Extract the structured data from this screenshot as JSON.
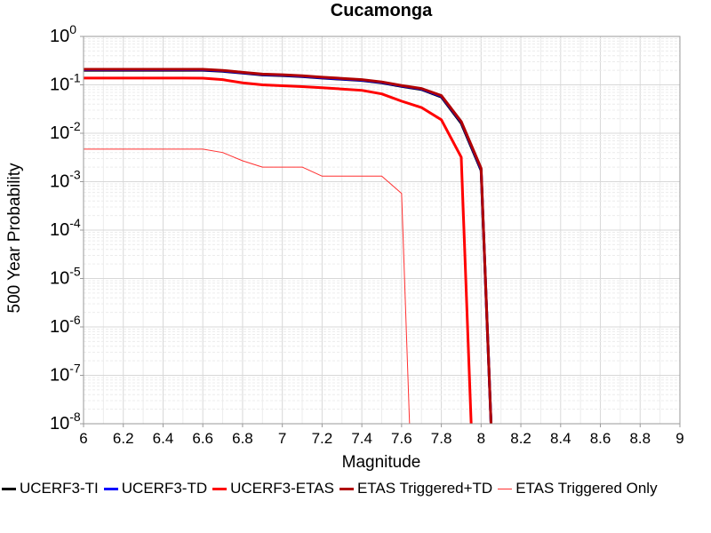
{
  "chart_data": {
    "type": "line",
    "title": "Cucamonga",
    "xlabel": "Magnitude",
    "ylabel": "500 Year Probability",
    "xlim": [
      6,
      9
    ],
    "ylim": [
      1e-08,
      1
    ],
    "yscale": "log",
    "grid": true,
    "legend_position": "bottom",
    "x_ticks": [
      "6",
      "6.2",
      "6.4",
      "6.6",
      "6.8",
      "7",
      "7.2",
      "7.4",
      "7.6",
      "7.8",
      "8",
      "8.2",
      "8.4",
      "8.6",
      "8.8",
      "9"
    ],
    "y_ticks": [
      {
        "base": "10",
        "exp": "0"
      },
      {
        "base": "10",
        "exp": "-1"
      },
      {
        "base": "10",
        "exp": "-2"
      },
      {
        "base": "10",
        "exp": "-3"
      },
      {
        "base": "10",
        "exp": "-4"
      },
      {
        "base": "10",
        "exp": "-5"
      },
      {
        "base": "10",
        "exp": "-6"
      },
      {
        "base": "10",
        "exp": "-7"
      },
      {
        "base": "10",
        "exp": "-8"
      }
    ],
    "series": [
      {
        "name": "UCERF3-ETAS",
        "color": "#ff0000",
        "width": 3,
        "x": [
          6.0,
          6.1,
          6.2,
          6.3,
          6.4,
          6.5,
          6.6,
          6.7,
          6.8,
          6.9,
          7.0,
          7.1,
          7.2,
          7.3,
          7.4,
          7.5,
          7.6,
          7.7,
          7.8,
          7.9,
          7.95
        ],
        "y": [
          0.138,
          0.138,
          0.138,
          0.138,
          0.138,
          0.138,
          0.137,
          0.128,
          0.11,
          0.1,
          0.096,
          0.092,
          0.087,
          0.082,
          0.077,
          0.065,
          0.046,
          0.034,
          0.019,
          0.0032,
          1e-08
        ]
      },
      {
        "name": "UCERF3-TI",
        "color": "#000000",
        "width": 3,
        "x": [
          6.0,
          6.1,
          6.2,
          6.3,
          6.4,
          6.5,
          6.6,
          6.7,
          6.8,
          6.9,
          7.0,
          7.1,
          7.2,
          7.3,
          7.4,
          7.5,
          7.6,
          7.7,
          7.8,
          7.9,
          8.0,
          8.05
        ],
        "y": [
          0.2,
          0.2,
          0.2,
          0.2,
          0.2,
          0.2,
          0.2,
          0.19,
          0.175,
          0.16,
          0.155,
          0.148,
          0.138,
          0.13,
          0.123,
          0.11,
          0.093,
          0.08,
          0.056,
          0.016,
          0.0017,
          1e-08
        ]
      },
      {
        "name": "UCERF3-TD",
        "color": "#0000ff",
        "width": 3,
        "x": [
          6.0,
          6.1,
          6.2,
          6.3,
          6.4,
          6.5,
          6.6,
          6.7,
          6.8,
          6.9,
          7.0,
          7.1,
          7.2,
          7.3,
          7.4,
          7.5,
          7.6,
          7.7,
          7.8,
          7.9,
          8.0,
          8.05
        ],
        "y": [
          0.205,
          0.205,
          0.205,
          0.205,
          0.205,
          0.205,
          0.204,
          0.194,
          0.178,
          0.163,
          0.158,
          0.15,
          0.14,
          0.132,
          0.125,
          0.112,
          0.095,
          0.082,
          0.058,
          0.017,
          0.0018,
          1e-08
        ]
      },
      {
        "name": "ETAS Triggered+TD",
        "color": "#b00000",
        "width": 3,
        "x": [
          6.0,
          6.1,
          6.2,
          6.3,
          6.4,
          6.5,
          6.6,
          6.7,
          6.8,
          6.9,
          7.0,
          7.1,
          7.2,
          7.3,
          7.4,
          7.5,
          7.6,
          7.7,
          7.8,
          7.9,
          8.0,
          8.05
        ],
        "y": [
          0.21,
          0.21,
          0.21,
          0.21,
          0.21,
          0.21,
          0.209,
          0.199,
          0.182,
          0.167,
          0.162,
          0.154,
          0.144,
          0.136,
          0.128,
          0.115,
          0.097,
          0.084,
          0.06,
          0.0175,
          0.0019,
          1e-08
        ]
      },
      {
        "name": "ETAS Triggered Only",
        "color": "#ff3030",
        "width": 1,
        "x": [
          6.0,
          6.1,
          6.2,
          6.3,
          6.4,
          6.5,
          6.6,
          6.7,
          6.8,
          6.9,
          7.0,
          7.1,
          7.2,
          7.3,
          7.4,
          7.5,
          7.6,
          7.64
        ],
        "y": [
          0.0047,
          0.0047,
          0.0047,
          0.0047,
          0.0047,
          0.0047,
          0.0047,
          0.004,
          0.0027,
          0.002,
          0.002,
          0.002,
          0.0013,
          0.0013,
          0.0013,
          0.0013,
          0.00057,
          1e-08
        ]
      }
    ],
    "legend": [
      {
        "label": "UCERF3-TI",
        "color": "#000000",
        "width": 3
      },
      {
        "label": "UCERF3-TD",
        "color": "#0000ff",
        "width": 3
      },
      {
        "label": "UCERF3-ETAS",
        "color": "#ff0000",
        "width": 3
      },
      {
        "label": "ETAS Triggered+TD",
        "color": "#b00000",
        "width": 3
      },
      {
        "label": "ETAS Triggered Only",
        "color": "#ff3030",
        "width": 1
      }
    ]
  }
}
